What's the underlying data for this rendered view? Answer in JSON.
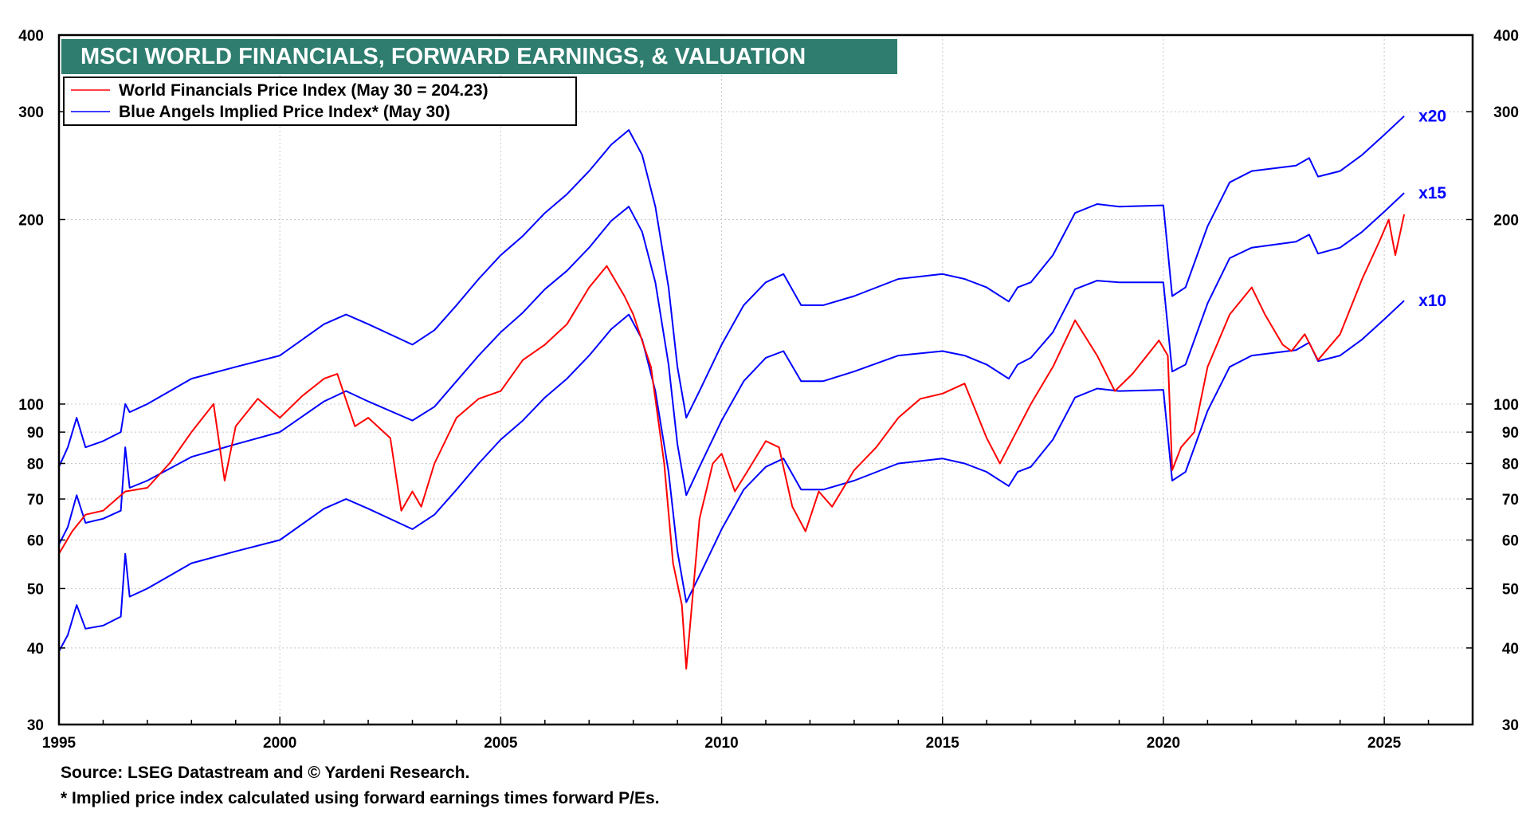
{
  "chart_data": {
    "type": "line",
    "title": "MSCI WORLD FINANCIALS, FORWARD EARNINGS, & VALUATION",
    "y_scale": "log",
    "ylim": [
      30,
      400
    ],
    "xlim": [
      1995,
      2027
    ],
    "x_ticks": [
      1995,
      2000,
      2005,
      2010,
      2015,
      2020,
      2025
    ],
    "y_ticks": [
      30,
      40,
      50,
      60,
      70,
      80,
      90,
      100,
      200,
      300,
      400
    ],
    "grid": true,
    "legend_position": "top-left",
    "colors": {
      "price": "#ff0000",
      "implied": "#0000ff",
      "title_bg": "#2e7d6f"
    },
    "legend": [
      {
        "label": "World Financials Price Index (May 30 = 204.23)",
        "color": "#ff0000"
      },
      {
        "label": "Blue Angels Implied Price Index* (May 30)",
        "color": "#0000ff"
      }
    ],
    "series": [
      {
        "name": "World Financials Price Index",
        "color": "#ff0000",
        "points": [
          [
            1995.0,
            57
          ],
          [
            1995.3,
            62
          ],
          [
            1995.6,
            66
          ],
          [
            1996.0,
            67
          ],
          [
            1996.5,
            72
          ],
          [
            1997.0,
            73
          ],
          [
            1997.5,
            80
          ],
          [
            1998.0,
            90
          ],
          [
            1998.5,
            100
          ],
          [
            1998.75,
            75
          ],
          [
            1999.0,
            92
          ],
          [
            1999.5,
            102
          ],
          [
            2000.0,
            95
          ],
          [
            2000.5,
            103
          ],
          [
            2001.0,
            110
          ],
          [
            2001.3,
            112
          ],
          [
            2001.7,
            92
          ],
          [
            2002.0,
            95
          ],
          [
            2002.5,
            88
          ],
          [
            2002.75,
            67
          ],
          [
            2003.0,
            72
          ],
          [
            2003.2,
            68
          ],
          [
            2003.5,
            80
          ],
          [
            2004.0,
            95
          ],
          [
            2004.5,
            102
          ],
          [
            2005.0,
            105
          ],
          [
            2005.5,
            118
          ],
          [
            2006.0,
            125
          ],
          [
            2006.5,
            135
          ],
          [
            2007.0,
            155
          ],
          [
            2007.4,
            168
          ],
          [
            2007.8,
            150
          ],
          [
            2008.0,
            140
          ],
          [
            2008.4,
            115
          ],
          [
            2008.7,
            80
          ],
          [
            2008.9,
            55
          ],
          [
            2009.1,
            47
          ],
          [
            2009.2,
            37
          ],
          [
            2009.5,
            65
          ],
          [
            2009.8,
            80
          ],
          [
            2010.0,
            83
          ],
          [
            2010.3,
            72
          ],
          [
            2010.6,
            78
          ],
          [
            2011.0,
            87
          ],
          [
            2011.3,
            85
          ],
          [
            2011.6,
            68
          ],
          [
            2011.9,
            62
          ],
          [
            2012.2,
            72
          ],
          [
            2012.5,
            68
          ],
          [
            2013.0,
            78
          ],
          [
            2013.5,
            85
          ],
          [
            2014.0,
            95
          ],
          [
            2014.5,
            102
          ],
          [
            2015.0,
            104
          ],
          [
            2015.5,
            108
          ],
          [
            2016.0,
            88
          ],
          [
            2016.3,
            80
          ],
          [
            2016.6,
            88
          ],
          [
            2017.0,
            100
          ],
          [
            2017.5,
            115
          ],
          [
            2018.0,
            137
          ],
          [
            2018.5,
            120
          ],
          [
            2018.9,
            105
          ],
          [
            2019.3,
            112
          ],
          [
            2019.9,
            127
          ],
          [
            2020.1,
            120
          ],
          [
            2020.2,
            78
          ],
          [
            2020.4,
            85
          ],
          [
            2020.7,
            90
          ],
          [
            2021.0,
            115
          ],
          [
            2021.5,
            140
          ],
          [
            2022.0,
            155
          ],
          [
            2022.3,
            140
          ],
          [
            2022.7,
            125
          ],
          [
            2022.9,
            122
          ],
          [
            2023.2,
            130
          ],
          [
            2023.5,
            118
          ],
          [
            2024.0,
            130
          ],
          [
            2024.5,
            160
          ],
          [
            2024.9,
            185
          ],
          [
            2025.1,
            200
          ],
          [
            2025.25,
            175
          ],
          [
            2025.45,
            204
          ]
        ]
      },
      {
        "name": "Implied Price Index x20",
        "color": "#0000ff",
        "points": [
          [
            1995.0,
            79
          ],
          [
            1995.2,
            85
          ],
          [
            1995.4,
            95
          ],
          [
            1995.6,
            85
          ],
          [
            1996.0,
            87
          ],
          [
            1996.4,
            90
          ],
          [
            1996.5,
            100
          ],
          [
            1996.6,
            97
          ],
          [
            1997.0,
            100
          ],
          [
            1998.0,
            110
          ],
          [
            1999.0,
            115
          ],
          [
            2000.0,
            120
          ],
          [
            2001.0,
            135
          ],
          [
            2001.5,
            140
          ],
          [
            2002.0,
            135
          ],
          [
            2003.0,
            125
          ],
          [
            2003.5,
            132
          ],
          [
            2004.0,
            145
          ],
          [
            2004.5,
            160
          ],
          [
            2005.0,
            175
          ],
          [
            2005.5,
            188
          ],
          [
            2006.0,
            205
          ],
          [
            2006.5,
            220
          ],
          [
            2007.0,
            240
          ],
          [
            2007.5,
            265
          ],
          [
            2007.9,
            280
          ],
          [
            2008.2,
            255
          ],
          [
            2008.5,
            210
          ],
          [
            2008.8,
            155
          ],
          [
            2009.0,
            115
          ],
          [
            2009.2,
            95
          ],
          [
            2009.5,
            105
          ],
          [
            2010.0,
            125
          ],
          [
            2010.5,
            145
          ],
          [
            2011.0,
            158
          ],
          [
            2011.4,
            163
          ],
          [
            2011.8,
            145
          ],
          [
            2012.3,
            145
          ],
          [
            2013.0,
            150
          ],
          [
            2014.0,
            160
          ],
          [
            2015.0,
            163
          ],
          [
            2015.5,
            160
          ],
          [
            2016.0,
            155
          ],
          [
            2016.5,
            147
          ],
          [
            2016.7,
            155
          ],
          [
            2017.0,
            158
          ],
          [
            2017.5,
            175
          ],
          [
            2018.0,
            205
          ],
          [
            2018.5,
            212
          ],
          [
            2019.0,
            210
          ],
          [
            2020.0,
            211
          ],
          [
            2020.2,
            150
          ],
          [
            2020.5,
            155
          ],
          [
            2021.0,
            195
          ],
          [
            2021.5,
            230
          ],
          [
            2022.0,
            240
          ],
          [
            2023.0,
            245
          ],
          [
            2023.3,
            252
          ],
          [
            2023.5,
            235
          ],
          [
            2024.0,
            240
          ],
          [
            2024.5,
            255
          ],
          [
            2025.0,
            275
          ],
          [
            2025.45,
            295
          ]
        ]
      },
      {
        "name": "Implied Price Index x15",
        "color": "#0000ff",
        "points": [
          [
            1995.0,
            59
          ],
          [
            1995.2,
            63
          ],
          [
            1995.4,
            71
          ],
          [
            1995.6,
            64
          ],
          [
            1996.0,
            65
          ],
          [
            1996.4,
            67
          ],
          [
            1996.5,
            85
          ],
          [
            1996.6,
            73
          ],
          [
            1997.0,
            75
          ],
          [
            1998.0,
            82
          ],
          [
            1999.0,
            86
          ],
          [
            2000.0,
            90
          ],
          [
            2001.0,
            101
          ],
          [
            2001.5,
            105
          ],
          [
            2002.0,
            101
          ],
          [
            2003.0,
            94
          ],
          [
            2003.5,
            99
          ],
          [
            2004.0,
            109
          ],
          [
            2004.5,
            120
          ],
          [
            2005.0,
            131
          ],
          [
            2005.5,
            141
          ],
          [
            2006.0,
            154
          ],
          [
            2006.5,
            165
          ],
          [
            2007.0,
            180
          ],
          [
            2007.5,
            199
          ],
          [
            2007.9,
            210
          ],
          [
            2008.2,
            191
          ],
          [
            2008.5,
            158
          ],
          [
            2008.8,
            116
          ],
          [
            2009.0,
            86
          ],
          [
            2009.2,
            71
          ],
          [
            2009.5,
            79
          ],
          [
            2010.0,
            94
          ],
          [
            2010.5,
            109
          ],
          [
            2011.0,
            119
          ],
          [
            2011.4,
            122
          ],
          [
            2011.8,
            109
          ],
          [
            2012.3,
            109
          ],
          [
            2013.0,
            113
          ],
          [
            2014.0,
            120
          ],
          [
            2015.0,
            122
          ],
          [
            2015.5,
            120
          ],
          [
            2016.0,
            116
          ],
          [
            2016.5,
            110
          ],
          [
            2016.7,
            116
          ],
          [
            2017.0,
            119
          ],
          [
            2017.5,
            131
          ],
          [
            2018.0,
            154
          ],
          [
            2018.5,
            159
          ],
          [
            2019.0,
            158
          ],
          [
            2020.0,
            158
          ],
          [
            2020.2,
            113
          ],
          [
            2020.5,
            116
          ],
          [
            2021.0,
            146
          ],
          [
            2021.5,
            173
          ],
          [
            2022.0,
            180
          ],
          [
            2023.0,
            184
          ],
          [
            2023.3,
            189
          ],
          [
            2023.5,
            176
          ],
          [
            2024.0,
            180
          ],
          [
            2024.5,
            191
          ],
          [
            2025.0,
            206
          ],
          [
            2025.45,
            221
          ]
        ]
      },
      {
        "name": "Implied Price Index x10",
        "color": "#0000ff",
        "points": [
          [
            1995.0,
            39.5
          ],
          [
            1995.2,
            42
          ],
          [
            1995.4,
            47
          ],
          [
            1995.6,
            43
          ],
          [
            1996.0,
            43.5
          ],
          [
            1996.4,
            45
          ],
          [
            1996.5,
            57
          ],
          [
            1996.6,
            48.5
          ],
          [
            1997.0,
            50
          ],
          [
            1998.0,
            55
          ],
          [
            1999.0,
            57.5
          ],
          [
            2000.0,
            60
          ],
          [
            2001.0,
            67.5
          ],
          [
            2001.5,
            70
          ],
          [
            2002.0,
            67.5
          ],
          [
            2003.0,
            62.5
          ],
          [
            2003.5,
            66
          ],
          [
            2004.0,
            72.5
          ],
          [
            2004.5,
            80
          ],
          [
            2005.0,
            87.5
          ],
          [
            2005.5,
            94
          ],
          [
            2006.0,
            102.5
          ],
          [
            2006.5,
            110
          ],
          [
            2007.0,
            120
          ],
          [
            2007.5,
            132.5
          ],
          [
            2007.9,
            140
          ],
          [
            2008.2,
            127.5
          ],
          [
            2008.5,
            105
          ],
          [
            2008.8,
            77.5
          ],
          [
            2009.0,
            57.5
          ],
          [
            2009.2,
            47.5
          ],
          [
            2009.5,
            52.5
          ],
          [
            2010.0,
            62.5
          ],
          [
            2010.5,
            72.5
          ],
          [
            2011.0,
            79
          ],
          [
            2011.4,
            81.5
          ],
          [
            2011.8,
            72.5
          ],
          [
            2012.3,
            72.5
          ],
          [
            2013.0,
            75
          ],
          [
            2014.0,
            80
          ],
          [
            2015.0,
            81.5
          ],
          [
            2015.5,
            80
          ],
          [
            2016.0,
            77.5
          ],
          [
            2016.5,
            73.5
          ],
          [
            2016.7,
            77.5
          ],
          [
            2017.0,
            79
          ],
          [
            2017.5,
            87.5
          ],
          [
            2018.0,
            102.5
          ],
          [
            2018.5,
            106
          ],
          [
            2019.0,
            105
          ],
          [
            2020.0,
            105.5
          ],
          [
            2020.2,
            75
          ],
          [
            2020.5,
            77.5
          ],
          [
            2021.0,
            97.5
          ],
          [
            2021.5,
            115
          ],
          [
            2022.0,
            120
          ],
          [
            2023.0,
            122.5
          ],
          [
            2023.3,
            126
          ],
          [
            2023.5,
            117.5
          ],
          [
            2024.0,
            120
          ],
          [
            2024.5,
            127.5
          ],
          [
            2025.0,
            137.5
          ],
          [
            2025.45,
            147.5
          ]
        ]
      }
    ],
    "annotations": [
      {
        "text": "x20",
        "series": "Implied Price Index x20",
        "color": "#0000ff"
      },
      {
        "text": "x15",
        "series": "Implied Price Index x15",
        "color": "#0000ff"
      },
      {
        "text": "x10",
        "series": "Implied Price Index x10",
        "color": "#0000ff"
      }
    ]
  },
  "footnotes": {
    "source": "Source: LSEG Datastream and © Yardeni Research.",
    "note": "* Implied price index calculated using forward earnings times forward P/Es."
  }
}
